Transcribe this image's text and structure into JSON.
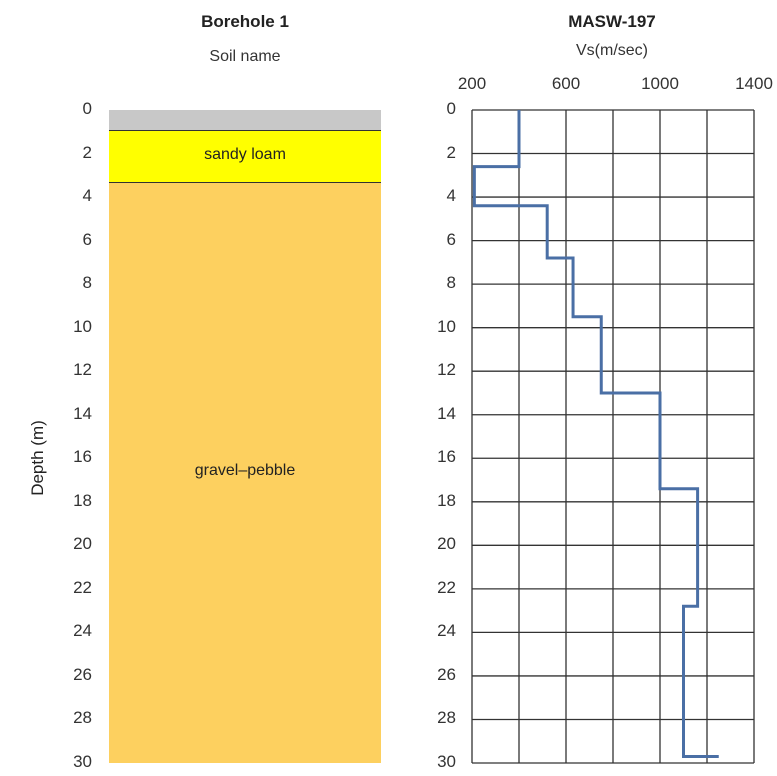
{
  "chart_data": [
    {
      "type": "table",
      "title": "Borehole 1",
      "subtitle": "Soil name",
      "ylabel": "Depth (m)",
      "ylim": [
        0,
        30
      ],
      "yticks": [
        "0",
        "2",
        "4",
        "6",
        "8",
        "10",
        "12",
        "14",
        "16",
        "18",
        "20",
        "22",
        "24",
        "26",
        "28",
        "30"
      ],
      "layers": [
        {
          "name": "",
          "top": 0,
          "bottom": 0.9,
          "color": "#c8c8c8"
        },
        {
          "name": "sandy loam",
          "top": 0.9,
          "bottom": 3.3,
          "color": "#ffff00"
        },
        {
          "name": "gravel–pebble",
          "top": 3.3,
          "bottom": 30,
          "color": "#fdd05f"
        }
      ]
    },
    {
      "type": "line",
      "title": "MASW-197",
      "xlabel": "Vs(m/sec)",
      "xlim": [
        200,
        1400
      ],
      "xticks": [
        "200",
        "600",
        "1000",
        "1400"
      ],
      "ylim": [
        0,
        30
      ],
      "yticks": [
        "0",
        "2",
        "4",
        "6",
        "8",
        "10",
        "12",
        "14",
        "16",
        "18",
        "20",
        "22",
        "24",
        "26",
        "28",
        "30"
      ],
      "series": [
        {
          "color": "#4a6fa5",
          "points": [
            [
              400,
              0
            ],
            [
              400,
              2.6
            ],
            [
              210,
              2.6
            ],
            [
              210,
              4.4
            ],
            [
              520,
              4.4
            ],
            [
              520,
              6.8
            ],
            [
              630,
              6.8
            ],
            [
              630,
              9.5
            ],
            [
              750,
              9.5
            ],
            [
              750,
              13.0
            ],
            [
              1000,
              13.0
            ],
            [
              1000,
              17.4
            ],
            [
              1160,
              17.4
            ],
            [
              1160,
              22.8
            ],
            [
              1100,
              22.8
            ],
            [
              1100,
              29.7
            ],
            [
              1250,
              29.7
            ]
          ]
        }
      ]
    }
  ]
}
